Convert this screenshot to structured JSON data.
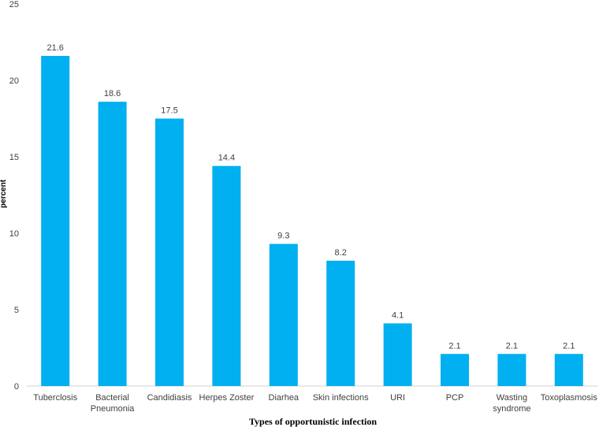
{
  "chart_data": {
    "type": "bar",
    "title": "",
    "xlabel": "Types of opportunistic infection",
    "ylabel": "percent",
    "ylim": [
      0,
      25
    ],
    "yticks": [
      0,
      5,
      10,
      15,
      20,
      25
    ],
    "grid": false,
    "bar_color": "#00B0F0",
    "categories": [
      [
        "Tuberclosis"
      ],
      [
        "Bacterial",
        "Pneumonia"
      ],
      [
        "Candidiasis"
      ],
      [
        "Herpes Zoster"
      ],
      [
        "Diarhea"
      ],
      [
        "Skin infections"
      ],
      [
        "URI"
      ],
      [
        "PCP"
      ],
      [
        "Wasting",
        "syndrome"
      ],
      [
        "Toxoplasmosis"
      ]
    ],
    "values": [
      21.6,
      18.6,
      17.5,
      14.4,
      9.3,
      8.2,
      4.1,
      2.1,
      2.1,
      2.1
    ]
  }
}
